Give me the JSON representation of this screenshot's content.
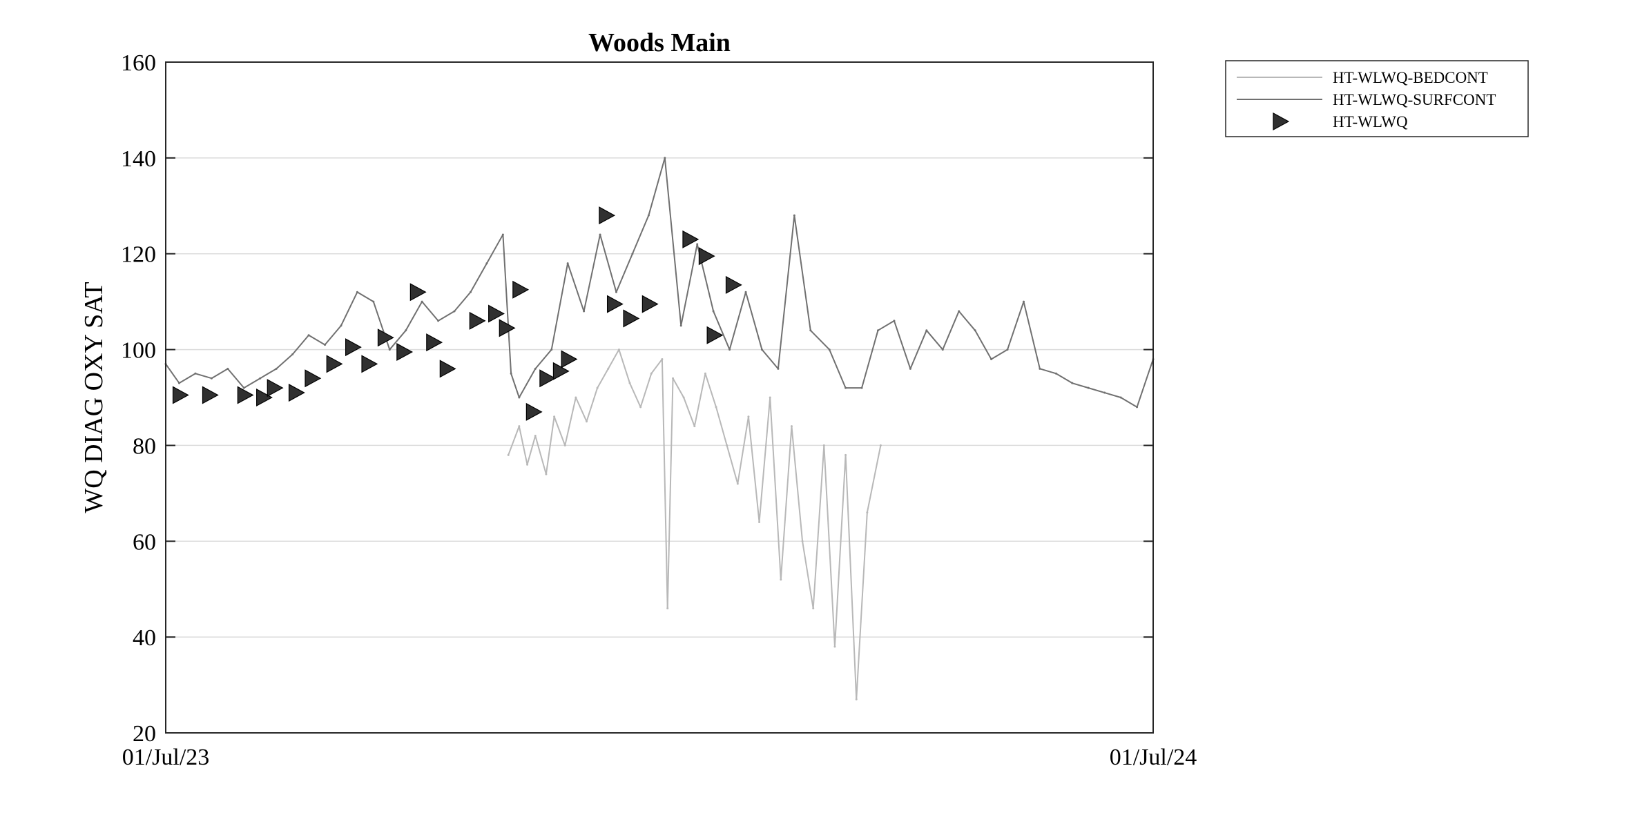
{
  "chart_data": {
    "type": "line",
    "title": "Woods Main",
    "xlabel": "",
    "ylabel": "WQ DIAG OXY SAT",
    "x_range": [
      "2023-07-01",
      "2024-07-01"
    ],
    "x_tick_labels": [
      "01/Jul/23",
      "01/Jul/24"
    ],
    "ylim": [
      20,
      160
    ],
    "y_ticks": [
      20,
      40,
      60,
      80,
      100,
      120,
      140,
      160
    ],
    "grid": "horizontal",
    "legend_position": "outside-top-right",
    "series": [
      {
        "name": "HT-WLWQ-BEDCONT",
        "style": "line",
        "color": "#b8b8b8",
        "x": [
          "2023-11-05",
          "2023-11-09",
          "2023-11-12",
          "2023-11-15",
          "2023-11-19",
          "2023-11-22",
          "2023-11-26",
          "2023-11-30",
          "2023-12-04",
          "2023-12-08",
          "2023-12-12",
          "2023-12-16",
          "2023-12-20",
          "2023-12-24",
          "2023-12-28",
          "2024-01-01",
          "2024-01-03",
          "2024-01-05",
          "2024-01-09",
          "2024-01-13",
          "2024-01-17",
          "2024-01-21",
          "2024-01-25",
          "2024-01-29",
          "2024-02-02",
          "2024-02-06",
          "2024-02-10",
          "2024-02-14",
          "2024-02-18",
          "2024-02-22",
          "2024-02-26",
          "2024-03-01",
          "2024-03-05",
          "2024-03-09",
          "2024-03-13",
          "2024-03-17",
          "2024-03-22"
        ],
        "y": [
          78,
          84,
          76,
          82,
          74,
          86,
          80,
          90,
          85,
          92,
          96,
          100,
          93,
          88,
          95,
          98,
          46,
          94,
          90,
          84,
          95,
          88,
          80,
          72,
          86,
          64,
          90,
          52,
          84,
          60,
          46,
          80,
          38,
          78,
          27,
          66,
          80
        ]
      },
      {
        "name": "HT-WLWQ-SURFCONT",
        "style": "line",
        "color": "#707070",
        "x": [
          "2023-07-01",
          "2023-07-06",
          "2023-07-12",
          "2023-07-18",
          "2023-07-24",
          "2023-07-30",
          "2023-08-05",
          "2023-08-11",
          "2023-08-17",
          "2023-08-23",
          "2023-08-29",
          "2023-09-04",
          "2023-09-10",
          "2023-09-16",
          "2023-09-22",
          "2023-09-28",
          "2023-10-04",
          "2023-10-10",
          "2023-10-16",
          "2023-10-22",
          "2023-10-28",
          "2023-11-03",
          "2023-11-06",
          "2023-11-09",
          "2023-11-15",
          "2023-11-21",
          "2023-11-27",
          "2023-12-03",
          "2023-12-09",
          "2023-12-15",
          "2023-12-21",
          "2023-12-27",
          "2024-01-02",
          "2024-01-08",
          "2024-01-14",
          "2024-01-20",
          "2024-01-26",
          "2024-02-01",
          "2024-02-07",
          "2024-02-13",
          "2024-02-19",
          "2024-02-25",
          "2024-03-03",
          "2024-03-09",
          "2024-03-15",
          "2024-03-21",
          "2024-03-27",
          "2024-04-02",
          "2024-04-08",
          "2024-04-14",
          "2024-04-20",
          "2024-04-26",
          "2024-05-02",
          "2024-05-08",
          "2024-05-14",
          "2024-05-20",
          "2024-05-26",
          "2024-06-01",
          "2024-06-07",
          "2024-06-13",
          "2024-06-19",
          "2024-06-25",
          "2024-07-01"
        ],
        "y": [
          97,
          93,
          95,
          94,
          96,
          92,
          94,
          96,
          99,
          103,
          101,
          105,
          112,
          110,
          100,
          104,
          110,
          106,
          108,
          112,
          118,
          124,
          95,
          90,
          96,
          100,
          118,
          108,
          124,
          112,
          120,
          128,
          140,
          105,
          122,
          108,
          100,
          112,
          100,
          96,
          128,
          104,
          100,
          92,
          92,
          104,
          106,
          96,
          104,
          100,
          108,
          104,
          98,
          100,
          110,
          96,
          95,
          93,
          92,
          91,
          90,
          88,
          98
        ]
      },
      {
        "name": "HT-WLWQ",
        "style": "marker",
        "marker": "triangle-right",
        "color": "#303030",
        "x": [
          "2023-07-06",
          "2023-07-17",
          "2023-07-30",
          "2023-08-06",
          "2023-08-10",
          "2023-08-18",
          "2023-08-24",
          "2023-09-01",
          "2023-09-08",
          "2023-09-14",
          "2023-09-20",
          "2023-09-27",
          "2023-10-02",
          "2023-10-08",
          "2023-10-13",
          "2023-10-24",
          "2023-10-31",
          "2023-11-04",
          "2023-11-09",
          "2023-11-14",
          "2023-11-19",
          "2023-11-24",
          "2023-11-27",
          "2023-12-11",
          "2023-12-14",
          "2023-12-20",
          "2023-12-27",
          "2024-01-11",
          "2024-01-17",
          "2024-01-20",
          "2024-01-27"
        ],
        "y": [
          90.5,
          90.5,
          90.5,
          90,
          92,
          91,
          94,
          97,
          100.5,
          97,
          102.5,
          99.5,
          112,
          101.5,
          96,
          106,
          107.5,
          104.5,
          112.5,
          87,
          94,
          95.5,
          98,
          128,
          109.5,
          106.5,
          109.5,
          123,
          119.5,
          103,
          113.5
        ]
      }
    ]
  }
}
